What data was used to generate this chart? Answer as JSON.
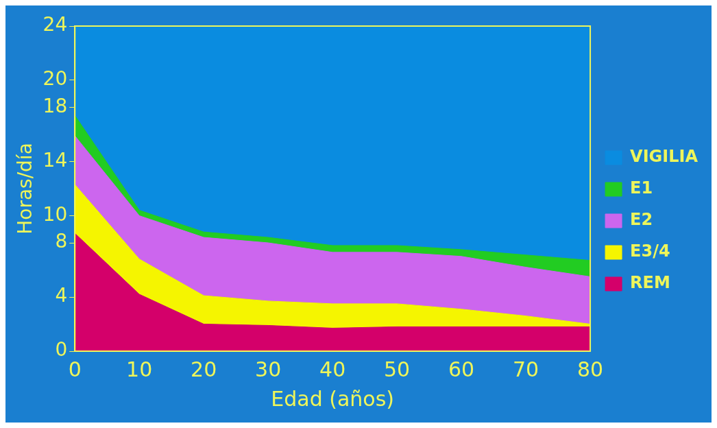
{
  "chart_data": {
    "type": "area",
    "stacked": true,
    "xlabel": "Edad (años)",
    "ylabel": "Horas/día",
    "x": [
      0,
      10,
      20,
      30,
      40,
      50,
      60,
      70,
      80
    ],
    "xlim": [
      0,
      80
    ],
    "xticks": [
      0,
      10,
      20,
      30,
      40,
      50,
      60,
      70,
      80
    ],
    "ylim": [
      0,
      24
    ],
    "yticks": [
      0,
      4,
      8,
      10,
      14,
      18,
      20,
      24
    ],
    "grid": false,
    "legend": "right",
    "series": [
      {
        "name": "REM",
        "color": "#d4006a",
        "values": [
          8.7,
          4.2,
          2.0,
          1.9,
          1.7,
          1.8,
          1.8,
          1.8,
          1.8
        ]
      },
      {
        "name": "E3/4",
        "color": "#f5f500",
        "values": [
          3.6,
          2.6,
          2.1,
          1.8,
          1.8,
          1.7,
          1.3,
          0.8,
          0.2
        ]
      },
      {
        "name": "E2",
        "color": "#cc66ee",
        "values": [
          3.6,
          3.2,
          4.3,
          4.3,
          3.8,
          3.8,
          3.9,
          3.6,
          3.5
        ]
      },
      {
        "name": "E1",
        "color": "#22cc22",
        "values": [
          1.5,
          0.4,
          0.4,
          0.4,
          0.5,
          0.5,
          0.5,
          0.9,
          1.2
        ]
      },
      {
        "name": "VIGILIA",
        "color": "#0a8ce0",
        "values": [
          6.6,
          13.6,
          15.2,
          15.6,
          16.2,
          16.2,
          16.5,
          16.9,
          17.3
        ]
      }
    ]
  }
}
